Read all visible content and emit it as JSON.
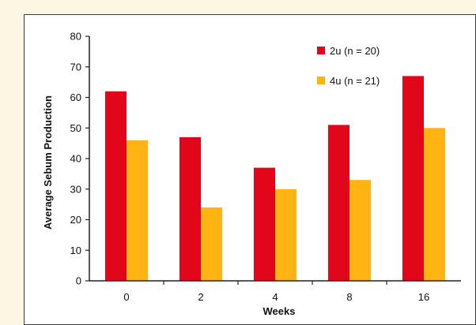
{
  "chart_data": {
    "type": "bar",
    "categories": [
      "0",
      "2",
      "4",
      "8",
      "16"
    ],
    "series": [
      {
        "name": "2u (n = 20)",
        "values": [
          62,
          47,
          37,
          51,
          67
        ],
        "color": "#e2061b"
      },
      {
        "name": "4u (n = 21)",
        "values": [
          46,
          24,
          30,
          33,
          50
        ],
        "color": "#ffb413"
      }
    ],
    "title": "",
    "xlabel": "Weeks",
    "ylabel": "Average Sebum Production",
    "ylim": [
      0,
      80
    ],
    "yticks": [
      0,
      10,
      20,
      30,
      40,
      50,
      60,
      70,
      80
    ],
    "grid": false,
    "legend_position": "top-right"
  }
}
